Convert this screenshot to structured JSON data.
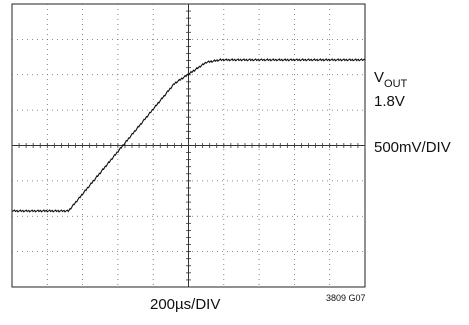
{
  "chart_data": {
    "type": "line",
    "title": "",
    "xlabel": "200µs/DIV",
    "ylabel": "500mV/DIV",
    "divisions": {
      "x": 10,
      "y": 8
    },
    "xlim_div": [
      0,
      10
    ],
    "ylim_div": [
      0,
      8
    ],
    "grid": true,
    "series": [
      {
        "name": "VOUT",
        "x_us": [
          0,
          320,
          920,
          1100,
          1180,
          2000
        ],
        "y_div": [
          2.15,
          2.15,
          5.75,
          6.35,
          6.42,
          6.42
        ]
      }
    ],
    "trace_color": "#111111",
    "grid_color": "#666666"
  },
  "labels": {
    "signal_name": "V",
    "signal_subscript": "OUT",
    "signal_level": "1.8V",
    "vertical_scale": "500mV/DIV",
    "horizontal_scale": "200µs/DIV",
    "figure_id": "3809 G07"
  }
}
